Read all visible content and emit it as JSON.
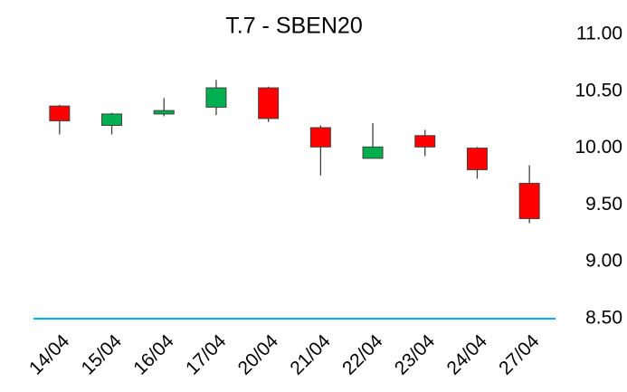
{
  "chart_data": {
    "type": "candlestick",
    "title": "T.7 - SBEN20",
    "categories": [
      "14/04",
      "15/04",
      "16/04",
      "17/04",
      "20/04",
      "21/04",
      "22/04",
      "23/04",
      "24/04",
      "27/04"
    ],
    "open": [
      10.37,
      10.2,
      10.3,
      10.36,
      10.53,
      10.18,
      9.91,
      10.11,
      10.0,
      9.69
    ],
    "high": [
      10.38,
      10.31,
      10.44,
      10.6,
      10.54,
      10.2,
      10.22,
      10.16,
      10.01,
      9.85
    ],
    "low": [
      10.12,
      10.12,
      10.28,
      10.29,
      10.23,
      9.76,
      9.91,
      9.93,
      9.73,
      9.34
    ],
    "close": [
      10.24,
      10.3,
      10.33,
      10.53,
      10.26,
      10.01,
      10.01,
      10.01,
      9.81,
      9.38
    ],
    "up_color": "#00b050",
    "down_color": "#ff0000",
    "axis_color": "#00b0f0",
    "ylim": [
      8.5,
      11.0
    ],
    "yticks": [
      {
        "value": 8.5,
        "label": "8.50"
      },
      {
        "value": 9.0,
        "label": "9.00"
      },
      {
        "value": 9.5,
        "label": "9.50"
      },
      {
        "value": 10.0,
        "label": "10.00"
      },
      {
        "value": 10.5,
        "label": "10.50"
      },
      {
        "value": 11.0,
        "label": "11.00"
      }
    ],
    "y_axis_side": "right"
  }
}
